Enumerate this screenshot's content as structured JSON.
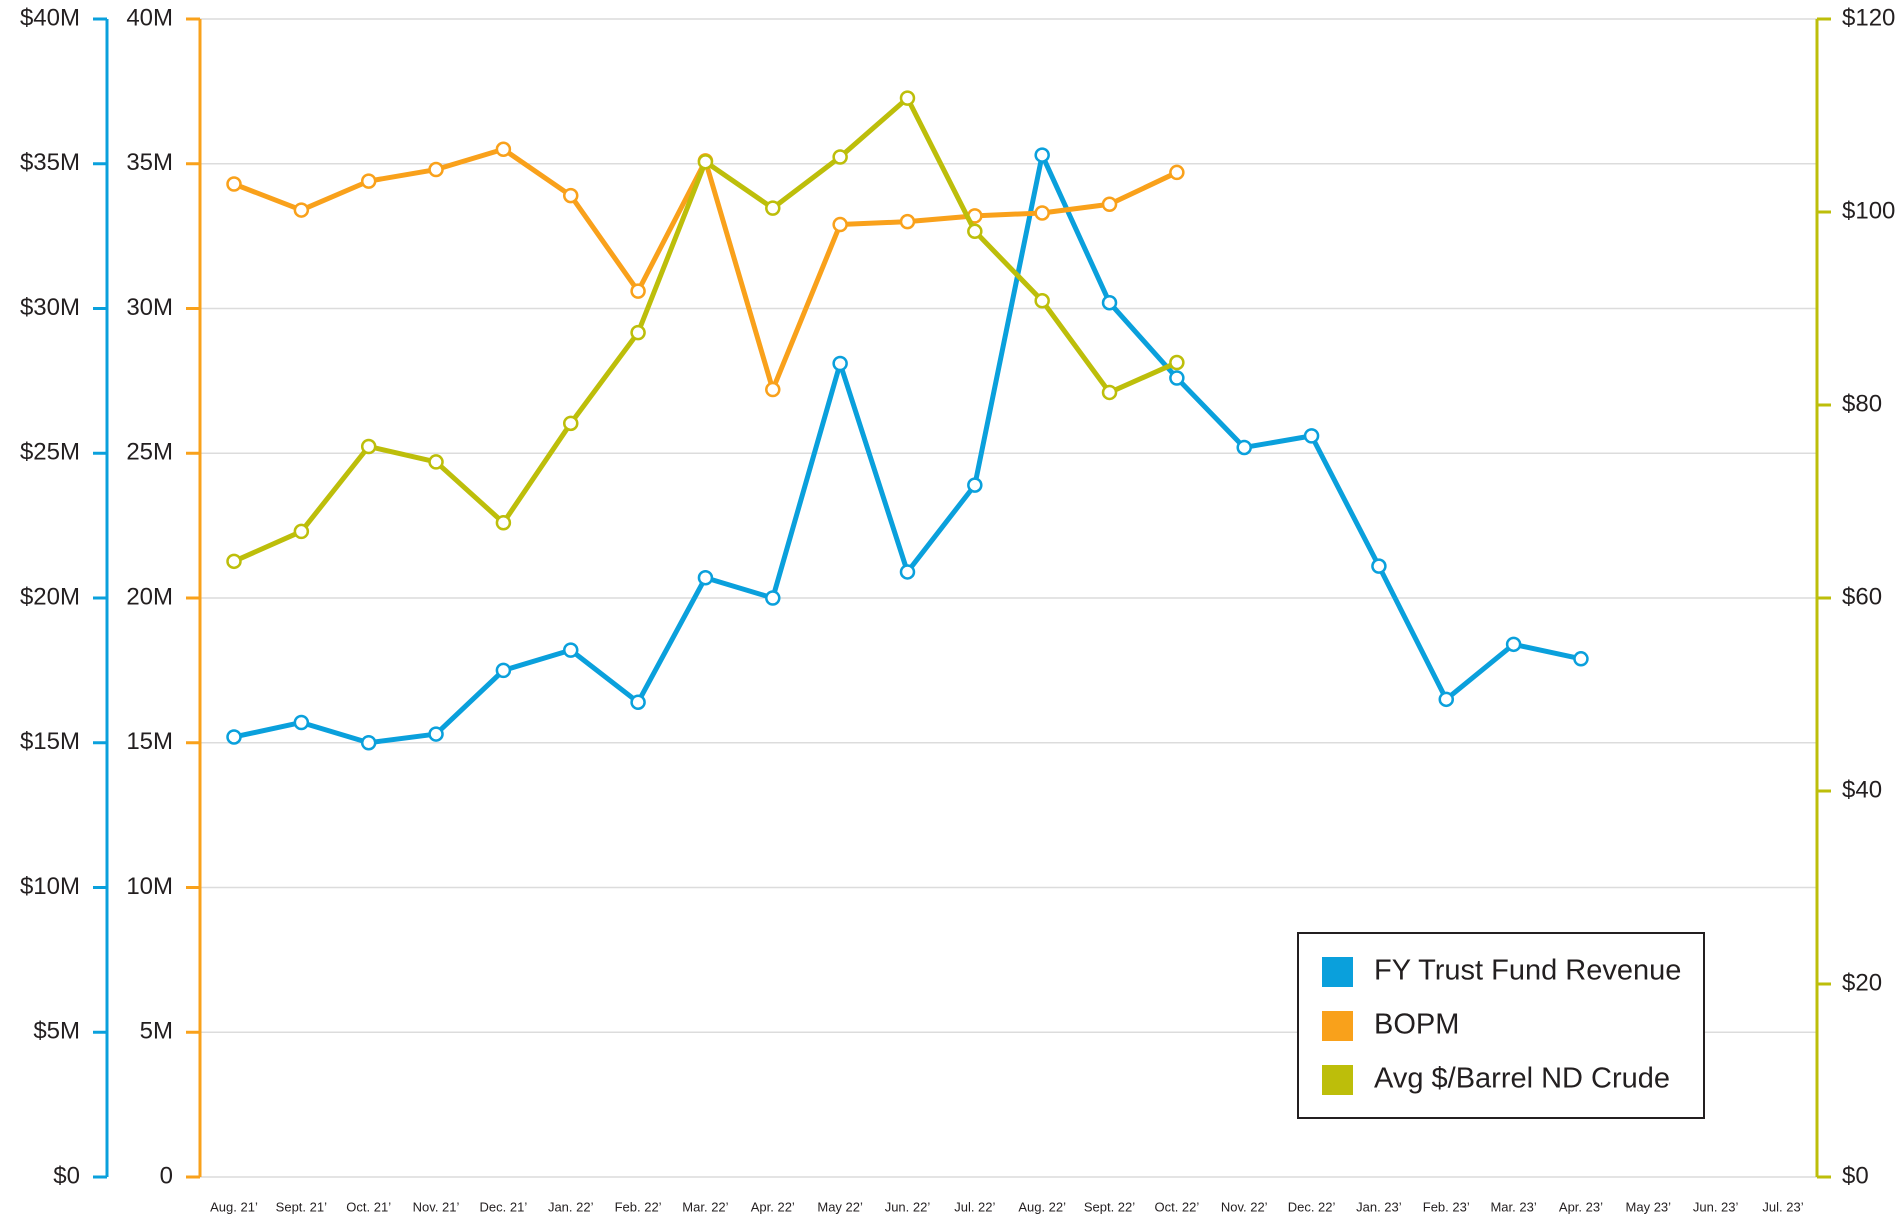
{
  "chart_data": {
    "type": "line",
    "categories": [
      "Aug. 21’",
      "Sept. 21’",
      "Oct. 21’",
      "Nov. 21’",
      "Dec. 21’",
      "Jan. 22’",
      "Feb. 22’",
      "Mar. 22’",
      "Apr. 22’",
      "May 22’",
      "Jun. 22’",
      "Jul. 22’",
      "Aug. 22’",
      "Sept. 22’",
      "Oct. 22’",
      "Nov. 22’",
      "Dec. 22’",
      "Jan. 23’",
      "Feb. 23’",
      "Mar. 23’",
      "Apr. 23’",
      "May 23’",
      "Jun. 23’",
      "Jul. 23’"
    ],
    "series": [
      {
        "name": "FY Trust Fund Revenue",
        "color": "#0aa0dc",
        "axis": "y",
        "values": [
          15.2,
          15.7,
          15.0,
          15.3,
          17.5,
          18.2,
          16.4,
          20.7,
          20.0,
          28.1,
          20.9,
          23.9,
          35.3,
          30.2,
          27.6,
          25.2,
          25.6,
          21.1,
          16.5,
          18.4,
          17.9,
          null,
          null,
          null
        ]
      },
      {
        "name": "BOPM",
        "color": "#f9a11b",
        "axis": "y3",
        "values": [
          34.3,
          33.4,
          34.4,
          34.8,
          35.5,
          33.9,
          30.6,
          35.1,
          27.2,
          32.9,
          33.0,
          33.2,
          33.3,
          33.6,
          34.7,
          null,
          null,
          null,
          null,
          null,
          null,
          null,
          null,
          null
        ]
      },
      {
        "name": "Avg $/Barrel ND Crude",
        "color": "#bdbe0a",
        "axis": "y2",
        "values": [
          63.8,
          66.9,
          75.7,
          74.1,
          67.8,
          78.1,
          87.5,
          105.2,
          100.4,
          105.7,
          111.8,
          98.0,
          90.8,
          81.3,
          84.4,
          null,
          null,
          null,
          null,
          null,
          null,
          null,
          null,
          null
        ]
      }
    ],
    "ylim": [
      0,
      40
    ],
    "yticks": [
      {
        "value": 0,
        "label": "$0"
      },
      {
        "value": 5,
        "label": "$5M"
      },
      {
        "value": 10,
        "label": "$10M"
      },
      {
        "value": 15,
        "label": "$15M"
      },
      {
        "value": 20,
        "label": "$20M"
      },
      {
        "value": 25,
        "label": "$25M"
      },
      {
        "value": 30,
        "label": "$30M"
      },
      {
        "value": 35,
        "label": "$35M"
      },
      {
        "value": 40,
        "label": "$40M"
      }
    ],
    "y3lim": [
      0,
      40
    ],
    "y3ticks": [
      0,
      {
        "value": 5,
        "label": "5M"
      },
      {
        "value": 10,
        "label": "10M"
      },
      {
        "value": 15,
        "label": "15M"
      },
      {
        "value": 20,
        "label": "20M"
      },
      {
        "value": 25,
        "label": "25M"
      },
      {
        "value": 30,
        "label": "30M"
      },
      {
        "value": 35,
        "label": "35M"
      },
      {
        "value": 40,
        "label": "40M"
      }
    ],
    "y2lim": [
      0,
      120
    ],
    "y2ticks": [
      {
        "value": 0,
        "label": "$0"
      },
      {
        "value": 20,
        "label": "$20"
      },
      {
        "value": 40,
        "label": "$40"
      },
      {
        "value": 60,
        "label": "$60"
      },
      {
        "value": 80,
        "label": "$80"
      },
      {
        "value": 100,
        "label": "$100"
      },
      {
        "value": 120,
        "label": "$120"
      }
    ],
    "grid": true,
    "legend": "lower right"
  }
}
